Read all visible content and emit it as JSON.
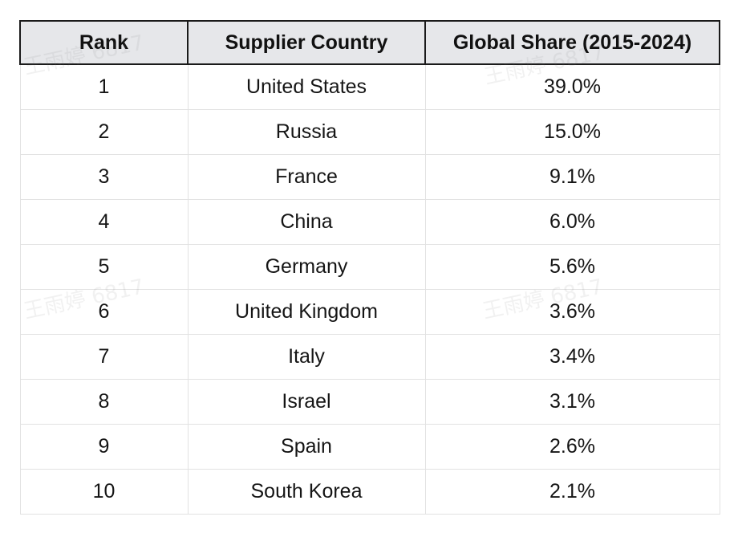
{
  "table": {
    "headers": [
      "Rank",
      "Supplier Country",
      "Global Share (2015-2024)"
    ],
    "rows": [
      [
        "1",
        "United States",
        "39.0%"
      ],
      [
        "2",
        "Russia",
        "15.0%"
      ],
      [
        "3",
        "France",
        "9.1%"
      ],
      [
        "4",
        "China",
        "6.0%"
      ],
      [
        "5",
        "Germany",
        "5.6%"
      ],
      [
        "6",
        "United Kingdom",
        "3.6%"
      ],
      [
        "7",
        "Italy",
        "3.4%"
      ],
      [
        "8",
        "Israel",
        "3.1%"
      ],
      [
        "9",
        "Spain",
        "2.6%"
      ],
      [
        "10",
        "South Korea",
        "2.1%"
      ]
    ]
  },
  "watermark": {
    "text": "王雨婷 6817"
  }
}
